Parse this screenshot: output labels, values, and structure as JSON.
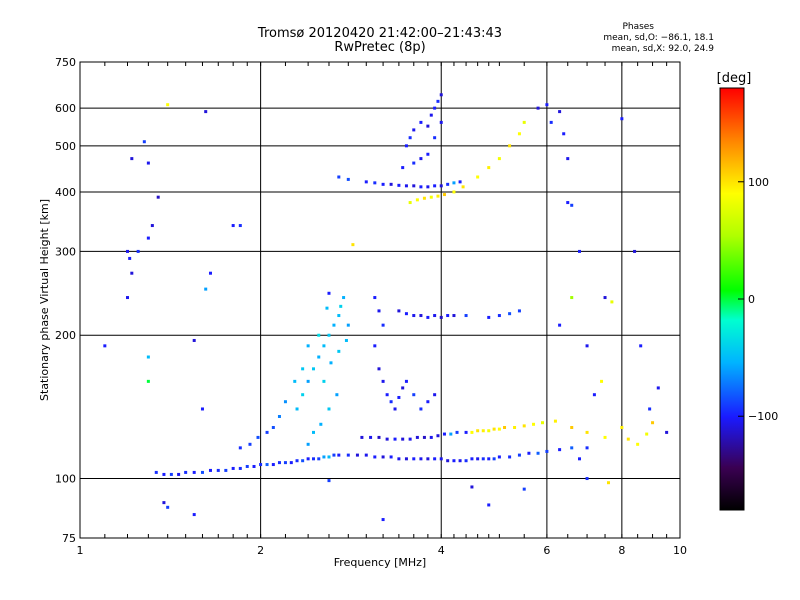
{
  "header": {
    "title_line1": "Tromsø 20120420 21:42:00–21:43:43",
    "title_line2": "RwPretec (8p)"
  },
  "phases": {
    "heading": "Phases",
    "o_line": "mean, sd,O: −86.1, 18.1",
    "x_line": "mean, sd,X:  92.0, 24.9"
  },
  "chart_data": {
    "type": "scatter",
    "title": "Tromsø 20120420 21:42:00–21:43:43",
    "subtitle": "RwPretec (8p)",
    "xlabel": "Frequency [MHz]",
    "ylabel": "Stationary phase Virtual Height [km]",
    "x_scale": "log",
    "y_scale": "log",
    "xlim": [
      1,
      10
    ],
    "ylim": [
      75,
      750
    ],
    "x_ticks": [
      {
        "value": 1,
        "label": "1"
      },
      {
        "value": 2,
        "label": "2"
      },
      {
        "value": 4,
        "label": "4"
      },
      {
        "value": 6,
        "label": "6"
      },
      {
        "value": 8,
        "label": "8"
      },
      {
        "value": 10,
        "label": "10"
      }
    ],
    "y_ticks": [
      {
        "value": 75,
        "label": "75"
      },
      {
        "value": 100,
        "label": "100"
      },
      {
        "value": 200,
        "label": "200"
      },
      {
        "value": 300,
        "label": "300"
      },
      {
        "value": 400,
        "label": "400"
      },
      {
        "value": 500,
        "label": "500"
      },
      {
        "value": 600,
        "label": "600"
      },
      {
        "value": 750,
        "label": "750"
      }
    ],
    "grid": true,
    "colorbar": {
      "label": "[deg]",
      "range": [
        -180,
        180
      ],
      "ticks": [
        {
          "value": 100,
          "label": "100"
        },
        {
          "value": 0,
          "label": "0"
        },
        {
          "value": -100,
          "label": "−100"
        }
      ]
    },
    "points": [
      [
        1.34,
        103,
        -95
      ],
      [
        1.38,
        102,
        -100
      ],
      [
        1.42,
        102,
        -90
      ],
      [
        1.46,
        102,
        -105
      ],
      [
        1.5,
        103,
        -95
      ],
      [
        1.55,
        103,
        -100
      ],
      [
        1.6,
        103,
        -85
      ],
      [
        1.65,
        104,
        -100
      ],
      [
        1.7,
        104,
        -95
      ],
      [
        1.75,
        104,
        -90
      ],
      [
        1.8,
        105,
        -100
      ],
      [
        1.85,
        105,
        -95
      ],
      [
        1.9,
        106,
        -90
      ],
      [
        1.95,
        106,
        -100
      ],
      [
        2.0,
        107,
        -95
      ],
      [
        2.05,
        107,
        -80
      ],
      [
        2.1,
        107,
        -100
      ],
      [
        2.15,
        108,
        -95
      ],
      [
        2.2,
        108,
        -90
      ],
      [
        2.25,
        108,
        -100
      ],
      [
        2.3,
        109,
        -95
      ],
      [
        2.35,
        109,
        -85
      ],
      [
        2.4,
        110,
        -100
      ],
      [
        2.45,
        110,
        -95
      ],
      [
        2.5,
        110,
        -90
      ],
      [
        2.55,
        111,
        -60
      ],
      [
        2.6,
        111,
        -50
      ],
      [
        2.65,
        112,
        -90
      ],
      [
        2.7,
        112,
        -100
      ],
      [
        2.8,
        112,
        -95
      ],
      [
        2.9,
        112,
        -110
      ],
      [
        3.0,
        112,
        -105
      ],
      [
        3.1,
        111,
        -100
      ],
      [
        3.2,
        111,
        -110
      ],
      [
        3.3,
        111,
        -100
      ],
      [
        3.4,
        110,
        -105
      ],
      [
        3.5,
        110,
        -110
      ],
      [
        3.6,
        110,
        -100
      ],
      [
        3.7,
        110,
        -105
      ],
      [
        3.8,
        110,
        -110
      ],
      [
        3.9,
        110,
        -100
      ],
      [
        4.0,
        110,
        -105
      ],
      [
        4.1,
        109,
        -110
      ],
      [
        4.2,
        109,
        -100
      ],
      [
        4.3,
        109,
        -105
      ],
      [
        4.4,
        109,
        -95
      ],
      [
        4.5,
        110,
        -100
      ],
      [
        4.6,
        110,
        -105
      ],
      [
        4.7,
        110,
        -95
      ],
      [
        4.8,
        110,
        -100
      ],
      [
        4.9,
        110,
        -90
      ],
      [
        5.0,
        111,
        -100
      ],
      [
        5.2,
        111,
        -95
      ],
      [
        5.4,
        112,
        -90
      ],
      [
        5.6,
        113,
        -100
      ],
      [
        5.8,
        113,
        -80
      ],
      [
        6.0,
        114,
        -90
      ],
      [
        6.3,
        115,
        -100
      ],
      [
        6.6,
        116,
        -80
      ],
      [
        7.0,
        116,
        -95
      ],
      [
        2.95,
        122,
        -110
      ],
      [
        3.05,
        122,
        -105
      ],
      [
        3.15,
        122,
        -115
      ],
      [
        3.25,
        121,
        -110
      ],
      [
        3.35,
        121,
        -100
      ],
      [
        3.45,
        121,
        -110
      ],
      [
        3.55,
        121,
        -105
      ],
      [
        3.65,
        122,
        -110
      ],
      [
        3.75,
        122,
        -115
      ],
      [
        3.85,
        122,
        -105
      ],
      [
        3.95,
        123,
        -110
      ],
      [
        4.05,
        124,
        -100
      ],
      [
        4.15,
        124,
        -60
      ],
      [
        4.25,
        125,
        -90
      ],
      [
        4.4,
        125,
        -100
      ],
      [
        4.5,
        125,
        90
      ],
      [
        4.6,
        126,
        100
      ],
      [
        4.7,
        126,
        95
      ],
      [
        4.8,
        126,
        85
      ],
      [
        4.9,
        127,
        100
      ],
      [
        5.0,
        127,
        90
      ],
      [
        5.1,
        128,
        110
      ],
      [
        5.3,
        128,
        95
      ],
      [
        5.5,
        129,
        100
      ],
      [
        5.7,
        130,
        90
      ],
      [
        5.9,
        131,
        80
      ],
      [
        6.2,
        132,
        95
      ],
      [
        6.6,
        128,
        110
      ],
      [
        7.0,
        125,
        100
      ],
      [
        7.5,
        122,
        90
      ],
      [
        8.0,
        128,
        95
      ],
      [
        8.2,
        121,
        100
      ],
      [
        8.5,
        118,
        90
      ],
      [
        8.8,
        124,
        85
      ],
      [
        9.0,
        131,
        110
      ],
      [
        2.3,
        140,
        -50
      ],
      [
        2.35,
        150,
        -40
      ],
      [
        2.4,
        160,
        -60
      ],
      [
        2.45,
        170,
        -45
      ],
      [
        2.5,
        180,
        -55
      ],
      [
        2.55,
        190,
        -50
      ],
      [
        2.6,
        200,
        -45
      ],
      [
        2.65,
        210,
        -55
      ],
      [
        2.7,
        220,
        -50
      ],
      [
        2.72,
        230,
        -40
      ],
      [
        2.75,
        240,
        -55
      ],
      [
        2.68,
        150,
        -60
      ],
      [
        2.6,
        140,
        -45
      ],
      [
        2.52,
        130,
        -55
      ],
      [
        2.45,
        125,
        -50
      ],
      [
        2.4,
        118,
        -60
      ],
      [
        2.55,
        160,
        -40
      ],
      [
        2.62,
        175,
        -55
      ],
      [
        2.7,
        185,
        -45
      ],
      [
        2.78,
        195,
        -50
      ],
      [
        2.8,
        210,
        -60
      ],
      [
        2.5,
        200,
        -35
      ],
      [
        2.58,
        228,
        -50
      ],
      [
        2.4,
        190,
        -55
      ],
      [
        2.35,
        170,
        -45
      ],
      [
        2.28,
        160,
        -50
      ],
      [
        2.2,
        145,
        -65
      ],
      [
        2.15,
        135,
        -70
      ],
      [
        2.1,
        128,
        -85
      ],
      [
        2.05,
        125,
        -90
      ],
      [
        1.98,
        122,
        -85
      ],
      [
        1.92,
        118,
        -90
      ],
      [
        1.85,
        116,
        -95
      ],
      [
        3.1,
        240,
        -100
      ],
      [
        3.15,
        225,
        -105
      ],
      [
        3.2,
        210,
        -95
      ],
      [
        3.1,
        190,
        -100
      ],
      [
        3.15,
        170,
        -110
      ],
      [
        3.2,
        160,
        -105
      ],
      [
        3.25,
        150,
        -100
      ],
      [
        3.3,
        145,
        -95
      ],
      [
        3.35,
        140,
        -105
      ],
      [
        3.4,
        148,
        -100
      ],
      [
        3.45,
        155,
        -110
      ],
      [
        3.5,
        160,
        -100
      ],
      [
        3.6,
        150,
        -90
      ],
      [
        3.7,
        140,
        -95
      ],
      [
        3.8,
        145,
        -100
      ],
      [
        3.9,
        150,
        -105
      ],
      [
        3.4,
        225,
        -110
      ],
      [
        3.5,
        222,
        -100
      ],
      [
        3.6,
        220,
        -105
      ],
      [
        3.7,
        220,
        -110
      ],
      [
        3.8,
        218,
        -100
      ],
      [
        3.9,
        220,
        -105
      ],
      [
        4.0,
        218,
        -115
      ],
      [
        4.1,
        220,
        -100
      ],
      [
        4.2,
        220,
        -110
      ],
      [
        4.4,
        220,
        -90
      ],
      [
        4.8,
        218,
        -100
      ],
      [
        5.0,
        220,
        -95
      ],
      [
        5.2,
        222,
        -85
      ],
      [
        5.4,
        225,
        -90
      ],
      [
        3.0,
        420,
        -100
      ],
      [
        3.1,
        418,
        -95
      ],
      [
        3.2,
        415,
        -100
      ],
      [
        3.3,
        415,
        -110
      ],
      [
        3.4,
        413,
        -100
      ],
      [
        3.5,
        412,
        -105
      ],
      [
        3.6,
        412,
        -110
      ],
      [
        3.7,
        410,
        -100
      ],
      [
        3.8,
        410,
        -105
      ],
      [
        3.9,
        412,
        -100
      ],
      [
        4.0,
        412,
        -110
      ],
      [
        4.1,
        415,
        -95
      ],
      [
        4.2,
        418,
        -60
      ],
      [
        4.3,
        420,
        -100
      ],
      [
        2.7,
        430,
        -90
      ],
      [
        2.8,
        425,
        -85
      ],
      [
        3.55,
        380,
        80
      ],
      [
        3.65,
        385,
        90
      ],
      [
        3.75,
        388,
        100
      ],
      [
        3.85,
        390,
        85
      ],
      [
        3.95,
        392,
        95
      ],
      [
        4.05,
        395,
        110
      ],
      [
        4.2,
        400,
        90
      ],
      [
        4.35,
        410,
        100
      ],
      [
        4.6,
        430,
        90
      ],
      [
        4.8,
        450,
        95
      ],
      [
        5.0,
        470,
        85
      ],
      [
        5.2,
        500,
        100
      ],
      [
        5.4,
        530,
        90
      ],
      [
        5.5,
        560,
        80
      ],
      [
        3.5,
        500,
        -100
      ],
      [
        3.55,
        520,
        -95
      ],
      [
        3.6,
        540,
        -105
      ],
      [
        3.7,
        560,
        -100
      ],
      [
        3.8,
        550,
        -110
      ],
      [
        3.85,
        580,
        -105
      ],
      [
        3.9,
        600,
        -100
      ],
      [
        3.95,
        620,
        -95
      ],
      [
        4.0,
        640,
        -110
      ],
      [
        3.8,
        480,
        -100
      ],
      [
        3.7,
        470,
        -105
      ],
      [
        3.6,
        460,
        -95
      ],
      [
        3.45,
        450,
        -100
      ],
      [
        4.0,
        560,
        -105
      ],
      [
        3.9,
        520,
        -95
      ],
      [
        1.22,
        470,
        -110
      ],
      [
        1.3,
        460,
        -105
      ],
      [
        1.35,
        390,
        -115
      ],
      [
        1.32,
        340,
        -110
      ],
      [
        1.2,
        300,
        -105
      ],
      [
        1.21,
        290,
        -100
      ],
      [
        1.22,
        270,
        -110
      ],
      [
        1.25,
        300,
        -95
      ],
      [
        1.3,
        320,
        -100
      ],
      [
        1.28,
        510,
        -90
      ],
      [
        1.4,
        610,
        90
      ],
      [
        1.62,
        590,
        -110
      ],
      [
        1.8,
        340,
        -100
      ],
      [
        1.85,
        340,
        -95
      ],
      [
        1.65,
        270,
        -100
      ],
      [
        1.62,
        250,
        -60
      ],
      [
        1.1,
        190,
        -100
      ],
      [
        1.3,
        180,
        -50
      ],
      [
        1.3,
        160,
        0
      ],
      [
        1.55,
        195,
        -110
      ],
      [
        1.6,
        140,
        -100
      ],
      [
        1.2,
        240,
        -105
      ],
      [
        1.38,
        89,
        -110
      ],
      [
        1.4,
        87,
        -90
      ],
      [
        1.55,
        84,
        -100
      ],
      [
        2.85,
        310,
        100
      ],
      [
        2.6,
        245,
        -100
      ],
      [
        5.8,
        600,
        -110
      ],
      [
        6.0,
        610,
        -100
      ],
      [
        6.1,
        560,
        -95
      ],
      [
        6.3,
        590,
        -110
      ],
      [
        6.4,
        530,
        -100
      ],
      [
        6.5,
        470,
        -105
      ],
      [
        6.5,
        380,
        -100
      ],
      [
        6.6,
        375,
        -90
      ],
      [
        6.8,
        300,
        -100
      ],
      [
        6.6,
        240,
        50
      ],
      [
        6.3,
        210,
        -100
      ],
      [
        7.0,
        190,
        -105
      ],
      [
        7.5,
        240,
        -110
      ],
      [
        7.7,
        235,
        80
      ],
      [
        8.0,
        570,
        -100
      ],
      [
        8.4,
        300,
        -110
      ],
      [
        8.6,
        190,
        -100
      ],
      [
        8.9,
        140,
        -95
      ],
      [
        9.2,
        155,
        -105
      ],
      [
        9.5,
        125,
        -110
      ],
      [
        7.2,
        150,
        -100
      ],
      [
        7.4,
        160,
        90
      ],
      [
        7.0,
        100,
        -95
      ],
      [
        6.8,
        110,
        -100
      ],
      [
        5.5,
        95,
        -90
      ],
      [
        4.8,
        88,
        -100
      ],
      [
        4.5,
        96,
        -110
      ],
      [
        3.2,
        82,
        -100
      ],
      [
        2.6,
        99,
        -90
      ],
      [
        7.6,
        98,
        100
      ]
    ]
  }
}
